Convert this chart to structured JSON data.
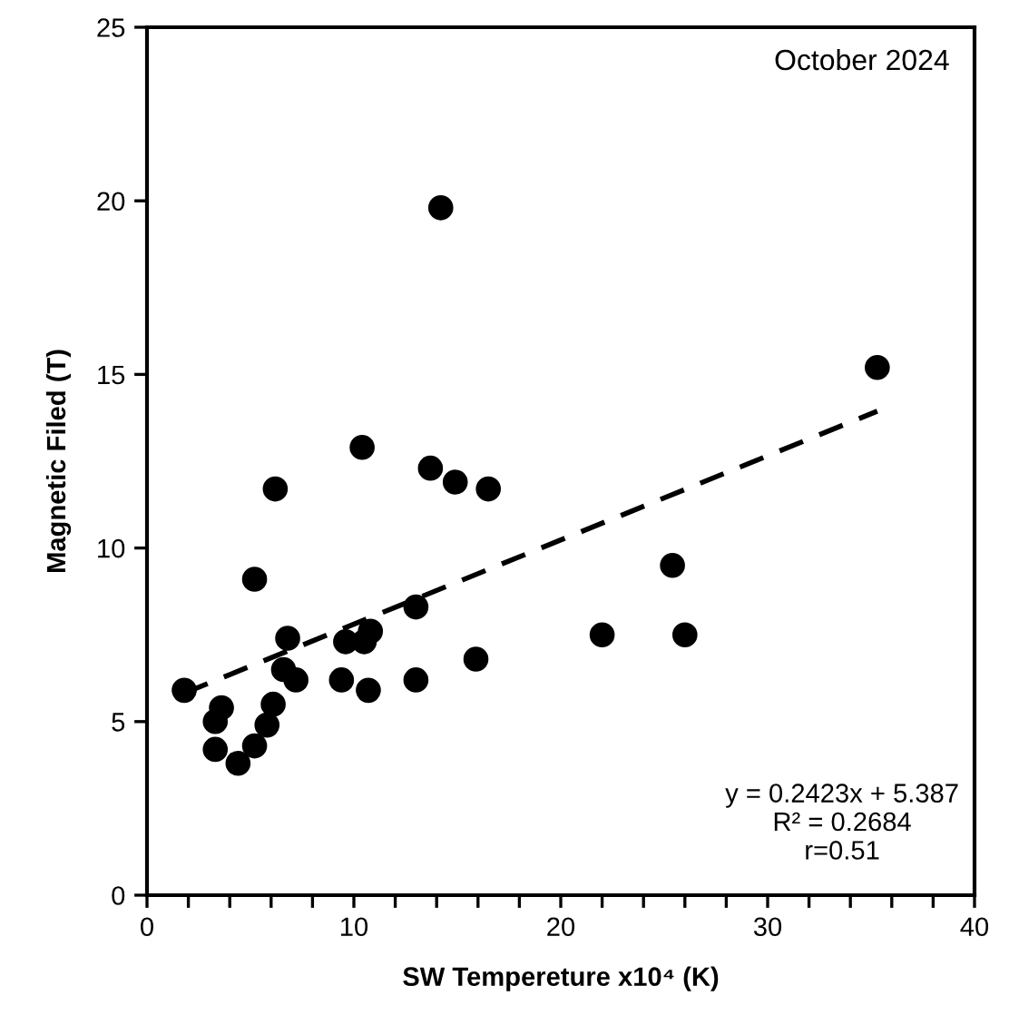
{
  "chart_data": {
    "type": "scatter",
    "xlabel": "SW Tempereture x10⁴ (K)",
    "ylabel": "Magnetic Filed (T)",
    "annotations": [
      "October 2024",
      "y = 0.2423x + 5.387\nR² = 0.2684\nr=0.51"
    ],
    "xlim": [
      0,
      40
    ],
    "ylim": [
      0,
      25
    ],
    "xticks": [
      0,
      {
        "value": 2,
        "label": null
      },
      {
        "value": 4,
        "label": null
      },
      {
        "value": 6,
        "label": null
      },
      {
        "value": 8,
        "label": null
      },
      10,
      {
        "value": 12,
        "label": null
      },
      {
        "value": 14,
        "label": null
      },
      {
        "value": 16,
        "label": null
      },
      {
        "value": 18,
        "label": null
      },
      20,
      {
        "value": 22,
        "label": null
      },
      {
        "value": 24,
        "label": null
      },
      {
        "value": 26,
        "label": null
      },
      {
        "value": 28,
        "label": null
      },
      30,
      {
        "value": 32,
        "label": null
      },
      {
        "value": 34,
        "label": null
      },
      {
        "value": 36,
        "label": null
      },
      {
        "value": 38,
        "label": null
      },
      40
    ],
    "yticks": [
      0,
      5,
      10,
      15,
      20,
      25
    ],
    "grid": false,
    "legend": false,
    "series": [
      {
        "color": "#000000",
        "marker": "circle",
        "x": [
          1.8,
          3.3,
          3.6,
          3.3,
          4.4,
          5.2,
          5.8,
          6.1,
          5.2,
          6.2,
          6.6,
          6.8,
          7.2,
          9.4,
          9.6,
          10.5,
          10.8,
          10.7,
          10.4,
          13.0,
          13.0,
          13.7,
          14.2,
          14.9,
          15.9,
          16.5,
          22.0,
          25.4,
          26.0,
          35.3
        ],
        "values": [
          5.9,
          5.0,
          5.4,
          4.2,
          3.8,
          4.3,
          4.9,
          5.5,
          9.1,
          11.7,
          6.5,
          7.4,
          6.2,
          6.2,
          7.3,
          7.3,
          7.6,
          5.9,
          12.9,
          8.3,
          6.2,
          12.3,
          19.8,
          11.9,
          6.8,
          11.7,
          7.5,
          9.5,
          7.5,
          15.2
        ]
      },
      {
        "type": "line",
        "color": "#000000",
        "line_style": "dashed",
        "marker": "none",
        "x": [
          1.8,
          35.3
        ],
        "values": [
          5.82,
          13.94
        ]
      }
    ]
  }
}
